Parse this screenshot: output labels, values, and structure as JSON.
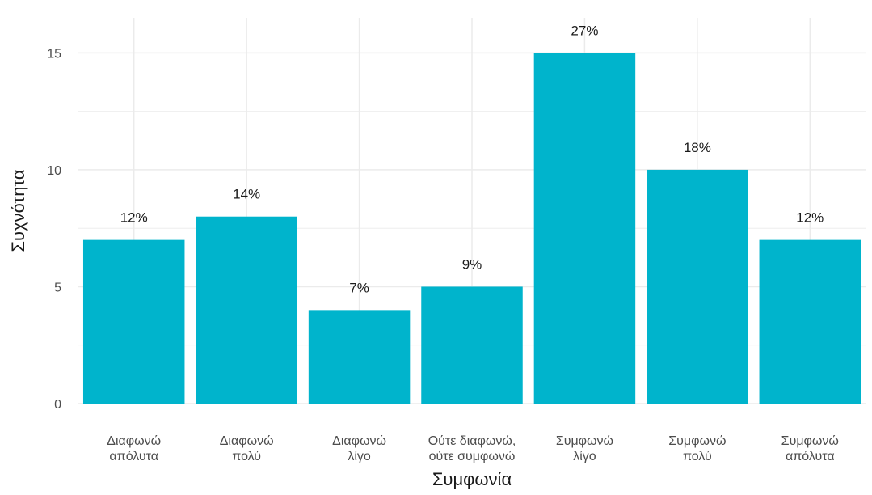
{
  "chart_data": {
    "type": "bar",
    "categories": [
      [
        "Διαφωνώ",
        "απόλυτα"
      ],
      [
        "Διαφωνώ",
        "πολύ"
      ],
      [
        "Διαφωνώ",
        "λίγο"
      ],
      [
        "Ούτε διαφωνώ,",
        "ούτε συμφωνώ"
      ],
      [
        "Συμφωνώ",
        "λίγο"
      ],
      [
        "Συμφωνώ",
        "πολύ"
      ],
      [
        "Συμφωνώ",
        "απόλυτα"
      ]
    ],
    "values": [
      7,
      8,
      4,
      5,
      15,
      10,
      7
    ],
    "data_labels": [
      "12%",
      "14%",
      "7%",
      "9%",
      "27%",
      "18%",
      "12%"
    ],
    "xlabel": "Συμφωνία",
    "ylabel": "Συχνότητα",
    "ylim": [
      0,
      16.5
    ],
    "yticks": [
      0,
      5,
      10,
      15
    ],
    "grid": true,
    "colors": {
      "bar": "#00b4cc",
      "grid": "#ebebeb"
    }
  }
}
